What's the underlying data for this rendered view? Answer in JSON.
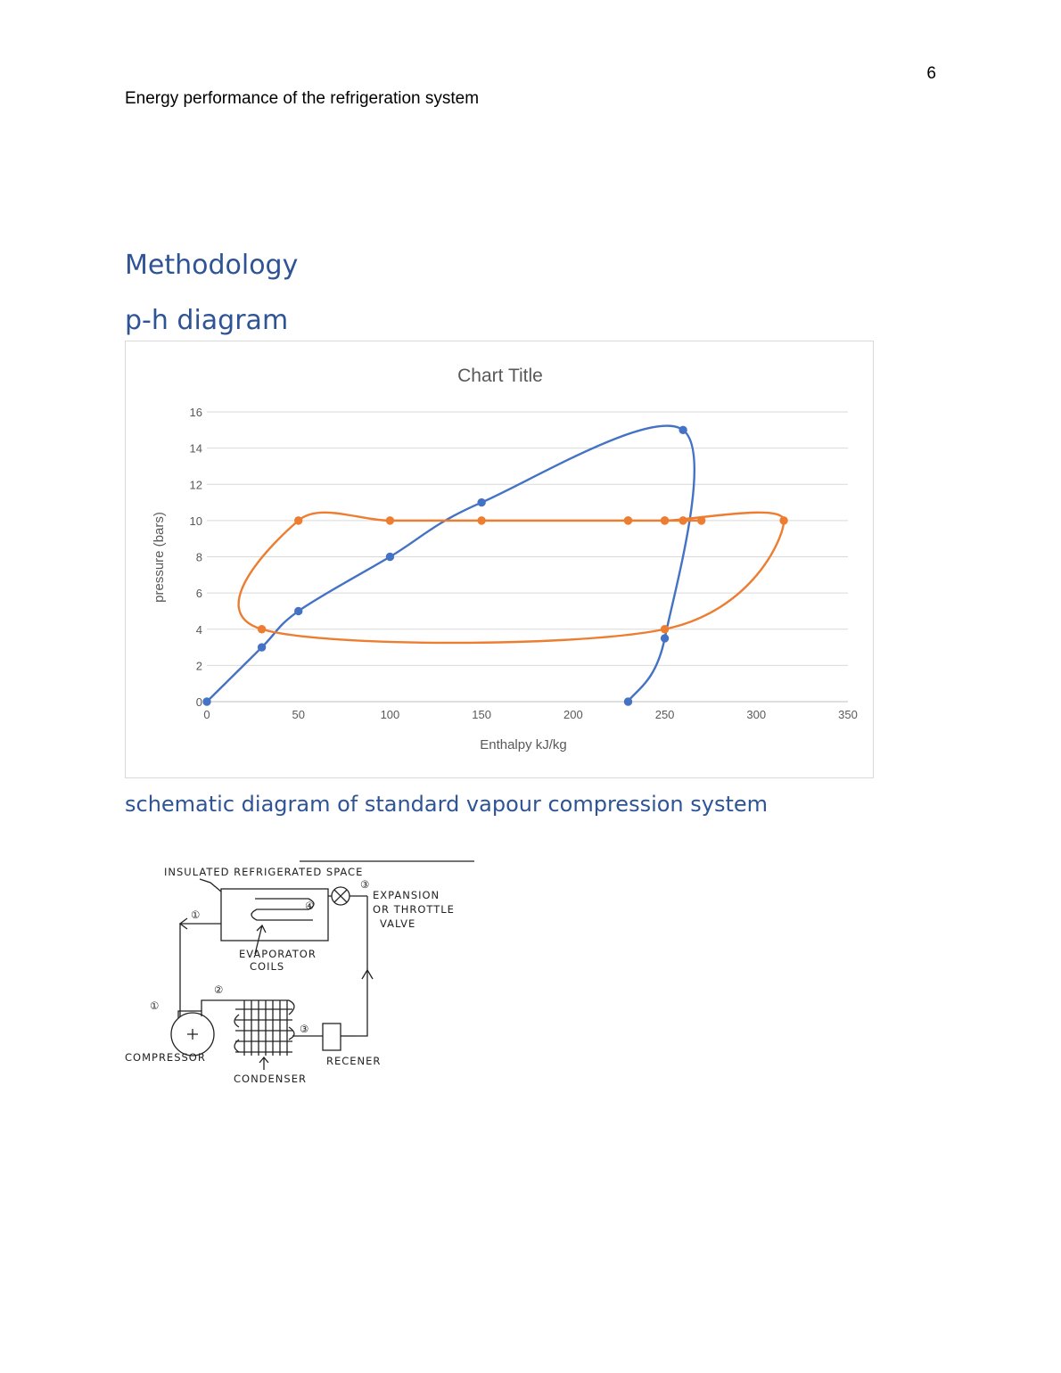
{
  "header": {
    "page_number": "6",
    "running_head": "Energy performance of the refrigeration system"
  },
  "headings": {
    "methodology": "Methodology",
    "ph_diagram": "p-h diagram",
    "schematic": "schematic diagram of standard vapour compression system"
  },
  "chart_data": {
    "type": "scatter",
    "title": "Chart Title",
    "xlabel": "Enthalpy kJ/kg",
    "ylabel": "pressure (bars)",
    "xlim": [
      0,
      350
    ],
    "ylim": [
      0,
      16
    ],
    "x_ticks": [
      0,
      50,
      100,
      150,
      200,
      250,
      300,
      350
    ],
    "y_ticks": [
      0,
      2,
      4,
      6,
      8,
      10,
      12,
      14,
      16
    ],
    "grid": "horizontal",
    "smoothed": true,
    "series": [
      {
        "color": "#4472C4",
        "points": [
          [
            0,
            0
          ],
          [
            30,
            3
          ],
          [
            50,
            5
          ],
          [
            100,
            8
          ],
          [
            150,
            11
          ],
          [
            260,
            15
          ],
          [
            250,
            3.5
          ],
          [
            230,
            0
          ]
        ]
      },
      {
        "color": "#ED7D31",
        "points": [
          [
            270,
            10
          ],
          [
            230,
            10
          ],
          [
            250,
            10
          ],
          [
            315,
            10
          ],
          [
            250,
            4
          ],
          [
            30,
            4
          ],
          [
            50,
            10
          ],
          [
            100,
            10
          ],
          [
            150,
            10
          ],
          [
            230,
            10
          ],
          [
            250,
            10
          ],
          [
            260,
            10
          ]
        ]
      }
    ]
  },
  "schematic": {
    "labels": {
      "space": "INSULATED REFRIGERATED SPACE",
      "expansion_1": "EXPANSION",
      "expansion_2": "OR THROTTLE",
      "expansion_3": "VALVE",
      "evaporator_1": "EVAPORATOR",
      "evaporator_2": "COILS",
      "compressor": "COMPRESSOR",
      "condenser": "CONDENSER",
      "receiver": "RECENER"
    },
    "state_numbers": [
      "①",
      "②",
      "③",
      "④",
      "①",
      "③"
    ]
  }
}
